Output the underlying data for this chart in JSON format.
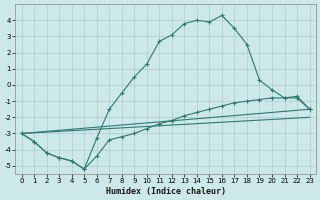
{
  "xlabel": "Humidex (Indice chaleur)",
  "bg_color": "#cce8e8",
  "grid_color": "#b0cccc",
  "line_color": "#2d7a72",
  "xlim": [
    -0.5,
    23.5
  ],
  "ylim": [
    -5.5,
    5.0
  ],
  "xticks": [
    0,
    1,
    2,
    3,
    4,
    5,
    6,
    7,
    8,
    9,
    10,
    11,
    12,
    13,
    14,
    15,
    16,
    17,
    18,
    19,
    20,
    21,
    22,
    23
  ],
  "yticks": [
    -5,
    -4,
    -3,
    -2,
    -1,
    0,
    1,
    2,
    3,
    4
  ],
  "curve1_x": [
    0,
    1,
    2,
    3,
    4,
    5,
    6,
    7,
    8,
    9,
    10,
    11,
    12,
    13,
    14,
    15,
    16,
    17,
    18,
    19,
    20,
    21,
    22,
    23
  ],
  "curve1_y": [
    -3.0,
    -3.5,
    -4.2,
    -4.5,
    -4.7,
    -5.2,
    -3.3,
    -1.5,
    -0.5,
    0.5,
    1.3,
    2.7,
    3.1,
    3.8,
    4.0,
    3.9,
    4.3,
    3.5,
    2.5,
    0.3,
    -0.3,
    -0.8,
    -0.8,
    -1.5
  ],
  "curve2_x": [
    0,
    1,
    2,
    3,
    4,
    5,
    6,
    7,
    8,
    9,
    10,
    11,
    12,
    13,
    14,
    15,
    16,
    17,
    18,
    19,
    20,
    21,
    22,
    23
  ],
  "curve2_y": [
    -3.0,
    -3.5,
    -4.2,
    -4.5,
    -4.7,
    -5.2,
    -4.4,
    -3.4,
    -3.2,
    -3.0,
    -2.7,
    -2.4,
    -2.2,
    -1.9,
    -1.7,
    -1.5,
    -1.3,
    -1.1,
    -1.0,
    -0.9,
    -0.8,
    -0.8,
    -0.7,
    -1.5
  ],
  "line1_x": [
    0,
    23
  ],
  "line1_y": [
    -3.0,
    -1.5
  ],
  "line2_x": [
    0,
    23
  ],
  "line2_y": [
    -3.0,
    -2.0
  ]
}
